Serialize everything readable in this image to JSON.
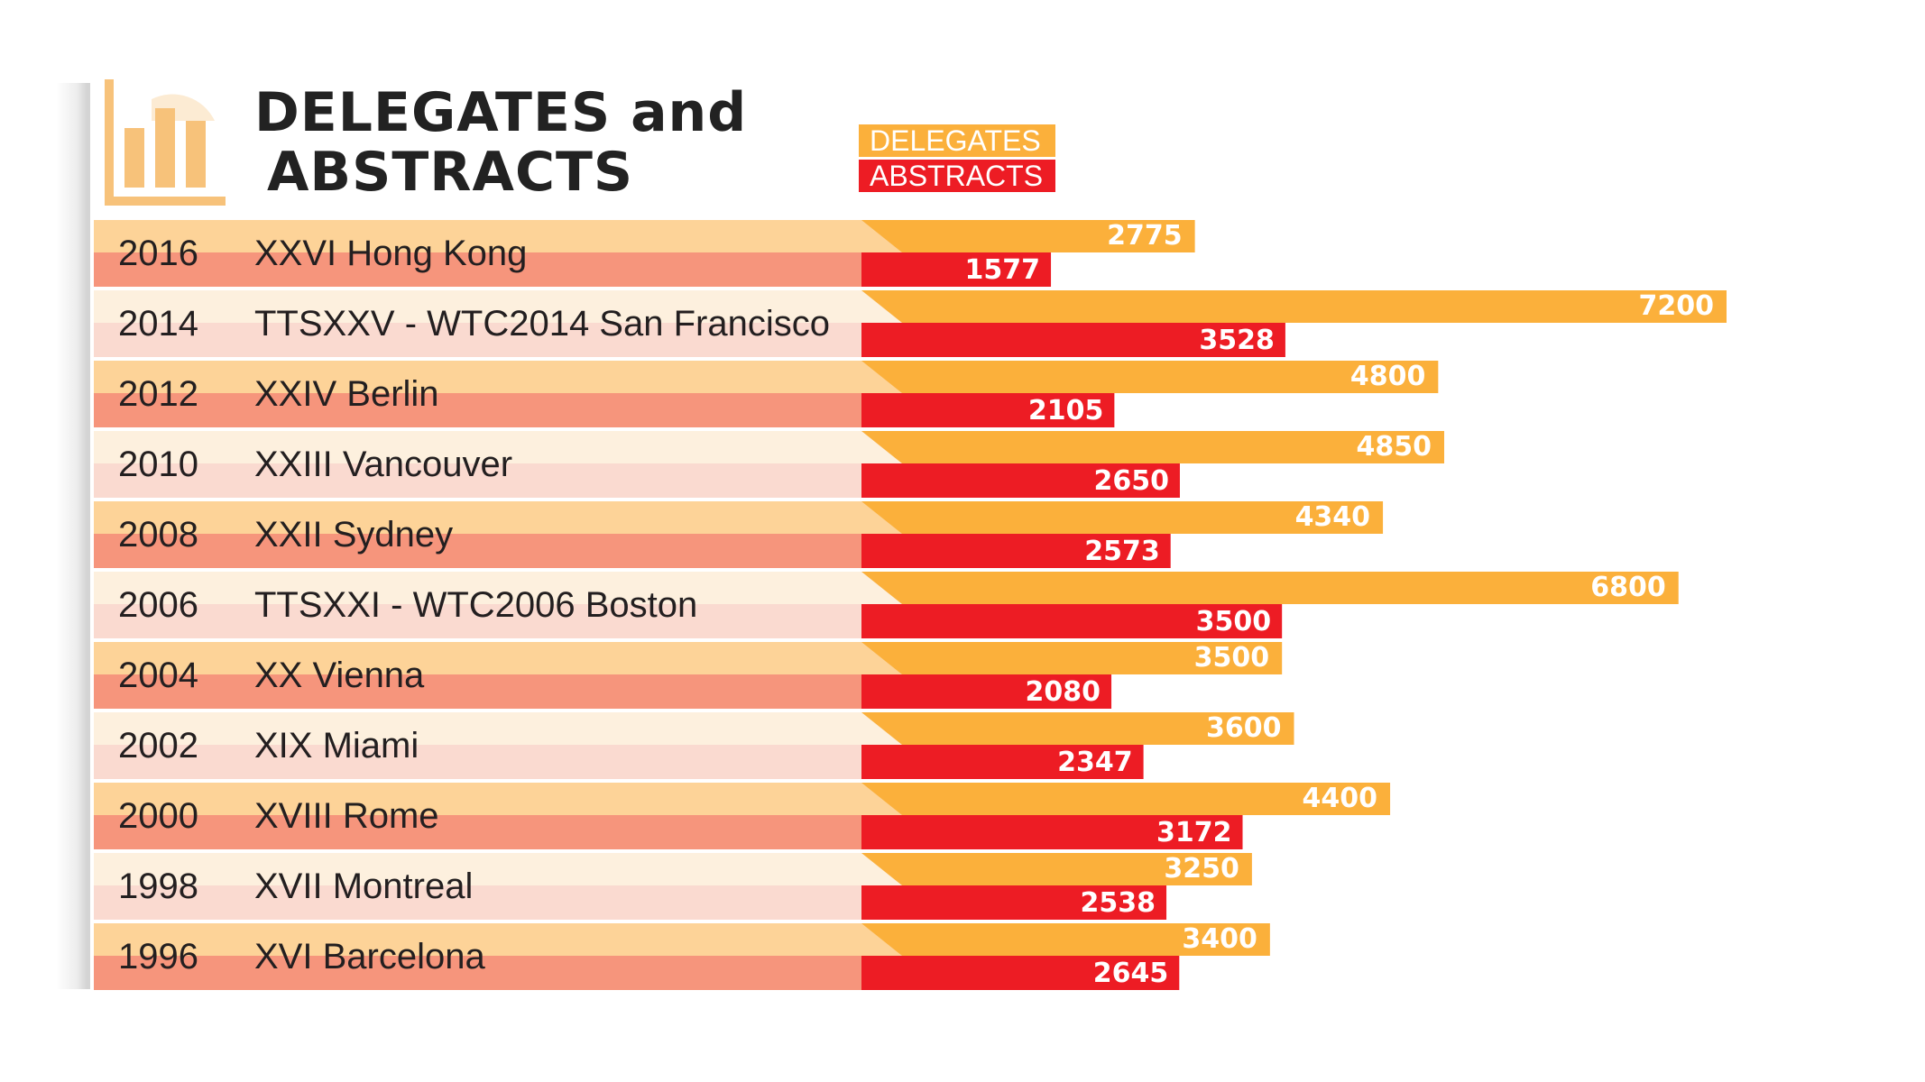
{
  "title": {
    "line1_main": "DELEGATES",
    "line1_and": "and",
    "line2": "ABSTRACTS"
  },
  "legend": {
    "delegates": "DELEGATES",
    "abstracts": "ABSTRACTS"
  },
  "colors": {
    "delegates": "#fbb03b",
    "abstracts": "#ed1c24",
    "row_odd_top": "#fdd398",
    "row_odd_bottom": "#f6957c",
    "row_even_top": "#fdf0de",
    "row_even_bottom": "#fadad0",
    "title_icon": "#f7c27a"
  },
  "chart_data": {
    "type": "bar",
    "orientation": "horizontal",
    "title": "DELEGATES and ABSTRACTS",
    "categories": [
      {
        "year": "2016",
        "name": "XXVI Hong Kong"
      },
      {
        "year": "2014",
        "name": "TTSXXV - WTC2014 San Francisco"
      },
      {
        "year": "2012",
        "name": "XXIV Berlin"
      },
      {
        "year": "2010",
        "name": "XXIII Vancouver"
      },
      {
        "year": "2008",
        "name": "XXII Sydney"
      },
      {
        "year": "2006",
        "name": "TTSXXI - WTC2006 Boston"
      },
      {
        "year": "2004",
        "name": "XX Vienna"
      },
      {
        "year": "2002",
        "name": "XIX Miami"
      },
      {
        "year": "2000",
        "name": "XVIII Rome"
      },
      {
        "year": "1998",
        "name": "XVII Montreal"
      },
      {
        "year": "1996",
        "name": "XVI Barcelona"
      }
    ],
    "series": [
      {
        "name": "DELEGATES",
        "values": [
          2775,
          7200,
          4800,
          4850,
          4340,
          6800,
          3500,
          3600,
          4400,
          3250,
          3400
        ]
      },
      {
        "name": "ABSTRACTS",
        "values": [
          1577,
          3528,
          2105,
          2650,
          2573,
          3500,
          2080,
          2347,
          3172,
          2538,
          2645
        ]
      }
    ],
    "xlim": [
      0,
      7200
    ],
    "legend_position": "top",
    "grid": false
  }
}
